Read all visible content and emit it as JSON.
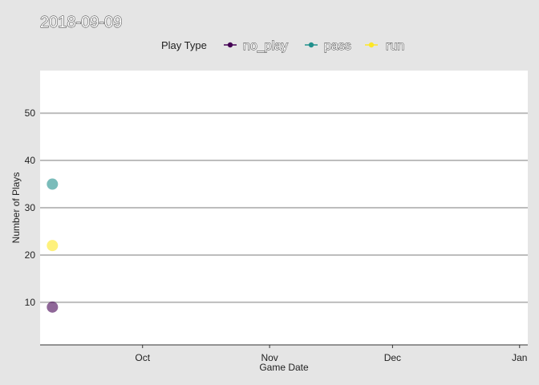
{
  "chart_data": {
    "type": "scatter",
    "title": "2018-09-09",
    "xlabel": "Game Date",
    "ylabel": "Number of Plays",
    "legend_title": "Play Type",
    "legend_position": "top",
    "grid": "horizontal major",
    "x_ticks": [
      "Oct",
      "Nov",
      "Dec",
      "Jan"
    ],
    "y_ticks": [
      10,
      20,
      30,
      40,
      50
    ],
    "xlim": [
      "2018-09-06",
      "2019-01-03"
    ],
    "ylim": [
      1,
      59
    ],
    "series": [
      {
        "name": "no_play",
        "color": "#440154",
        "points": [
          {
            "x": "2018-09-09",
            "y": 9
          }
        ]
      },
      {
        "name": "pass",
        "color": "#21908c",
        "points": [
          {
            "x": "2018-09-09",
            "y": 35
          }
        ]
      },
      {
        "name": "run",
        "color": "#fde725",
        "points": [
          {
            "x": "2018-09-09",
            "y": 22
          }
        ]
      }
    ]
  }
}
